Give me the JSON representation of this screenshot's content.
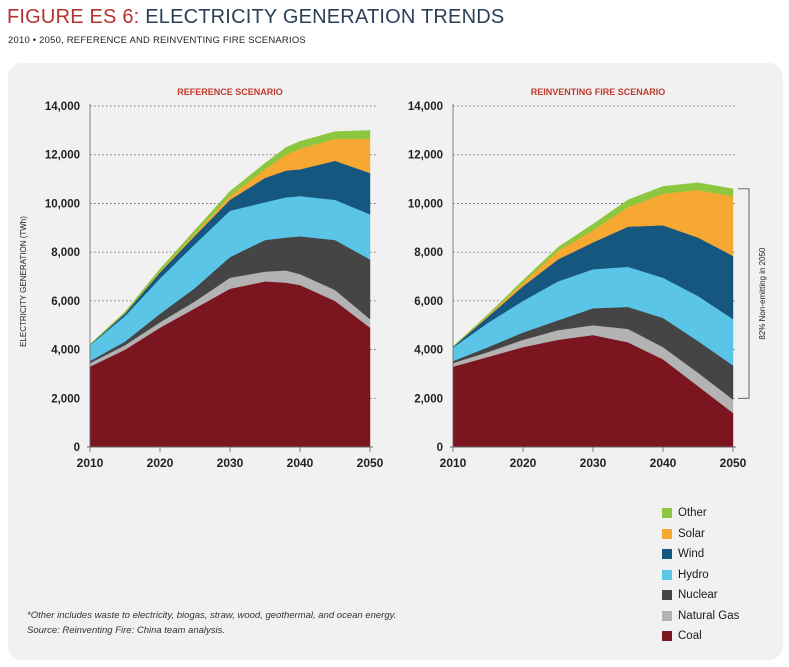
{
  "header": {
    "figure_label": "FIGURE ES 6:",
    "title": "ELECTRICITY GENERATION TRENDS",
    "subtitle": "2010 • 2050, REFERENCE AND REINVENTING FIRE SCENARIOS"
  },
  "footnote": {
    "line1": "*Other includes waste to electricity, biogas, straw, wood, geothermal, and ocean energy.",
    "line2": "Source: Reinventing Fire: China team analysis."
  },
  "legend": [
    {
      "name": "Other",
      "color": "#8dc63f"
    },
    {
      "name": "Solar",
      "color": "#f7a833"
    },
    {
      "name": "Wind",
      "color": "#15577f"
    },
    {
      "name": "Hydro",
      "color": "#5bc5e8"
    },
    {
      "name": "Nuclear",
      "color": "#454545"
    },
    {
      "name": "Natural Gas",
      "color": "#b3b3b3"
    },
    {
      "name": "Coal",
      "color": "#7b1520"
    }
  ],
  "chart_data": [
    {
      "type": "area",
      "stacked": true,
      "title": "REFERENCE SCENARIO",
      "ylabel": "ELECTRICITY GENERATION (TWh)",
      "xlabel": "",
      "xlim": [
        2010,
        2050
      ],
      "ylim": [
        0,
        14000
      ],
      "x_ticks": [
        2010,
        2020,
        2030,
        2040,
        2050
      ],
      "y_ticks": [
        0,
        2000,
        4000,
        6000,
        8000,
        10000,
        12000,
        14000
      ],
      "y_tick_labels": [
        "0",
        "2,000",
        "4,000",
        "6,000",
        "8,000",
        "10,000",
        "12,000",
        "14,000"
      ],
      "x": [
        2010,
        2015,
        2020,
        2025,
        2030,
        2035,
        2038,
        2040,
        2045,
        2050
      ],
      "series": [
        {
          "name": "Coal",
          "color": "#7b1520",
          "values": [
            3300,
            4000,
            4900,
            5700,
            6500,
            6800,
            6750,
            6650,
            6000,
            4900
          ]
        },
        {
          "name": "Natural Gas",
          "color": "#b3b3b3",
          "values": [
            150,
            180,
            220,
            280,
            450,
            400,
            500,
            450,
            450,
            350
          ]
        },
        {
          "name": "Nuclear",
          "color": "#454545",
          "values": [
            80,
            150,
            350,
            550,
            850,
            1300,
            1350,
            1550,
            2050,
            2450
          ]
        },
        {
          "name": "Hydro",
          "color": "#5bc5e8",
          "values": [
            650,
            1050,
            1450,
            1800,
            1900,
            1550,
            1650,
            1650,
            1650,
            1850
          ]
        },
        {
          "name": "Wind",
          "color": "#15577f",
          "values": [
            20,
            100,
            250,
            350,
            450,
            1000,
            1100,
            1100,
            1600,
            1700
          ]
        },
        {
          "name": "Solar",
          "color": "#f7a833",
          "values": [
            0,
            20,
            40,
            80,
            150,
            350,
            650,
            850,
            900,
            1400
          ]
        },
        {
          "name": "Other",
          "color": "#8dc63f",
          "values": [
            20,
            50,
            100,
            150,
            200,
            250,
            300,
            300,
            300,
            350
          ]
        }
      ]
    },
    {
      "type": "area",
      "stacked": true,
      "title": "REINVENTING FIRE SCENARIO",
      "ylabel": "",
      "xlabel": "",
      "xlim": [
        2010,
        2050
      ],
      "ylim": [
        0,
        14000
      ],
      "x_ticks": [
        2010,
        2020,
        2030,
        2040,
        2050
      ],
      "y_ticks": [
        0,
        2000,
        4000,
        6000,
        8000,
        10000,
        12000,
        14000
      ],
      "y_tick_labels": [
        "0",
        "2,000",
        "4,000",
        "6,000",
        "8,000",
        "10,000",
        "12,000",
        "14,000"
      ],
      "x": [
        2010,
        2015,
        2020,
        2025,
        2030,
        2035,
        2040,
        2045,
        2050
      ],
      "series": [
        {
          "name": "Coal",
          "color": "#7b1520",
          "values": [
            3300,
            3700,
            4100,
            4400,
            4600,
            4300,
            3600,
            2500,
            1400
          ]
        },
        {
          "name": "Natural Gas",
          "color": "#b3b3b3",
          "values": [
            150,
            200,
            300,
            400,
            400,
            550,
            500,
            550,
            550
          ]
        },
        {
          "name": "Nuclear",
          "color": "#454545",
          "values": [
            80,
            200,
            300,
            400,
            700,
            900,
            1200,
            1300,
            1400
          ]
        },
        {
          "name": "Hydro",
          "color": "#5bc5e8",
          "values": [
            550,
            1000,
            1300,
            1600,
            1600,
            1650,
            1650,
            1850,
            1900
          ]
        },
        {
          "name": "Wind",
          "color": "#15577f",
          "values": [
            30,
            250,
            600,
            900,
            1100,
            1650,
            2150,
            2400,
            2600
          ]
        },
        {
          "name": "Solar",
          "color": "#f7a833",
          "values": [
            0,
            50,
            150,
            350,
            500,
            800,
            1300,
            1950,
            2450
          ]
        },
        {
          "name": "Other",
          "color": "#8dc63f",
          "values": [
            20,
            50,
            100,
            150,
            250,
            300,
            300,
            300,
            300
          ]
        }
      ],
      "annotation": "82% Non-emitting in 2050",
      "annotation_range": [
        2000,
        10600
      ]
    }
  ]
}
